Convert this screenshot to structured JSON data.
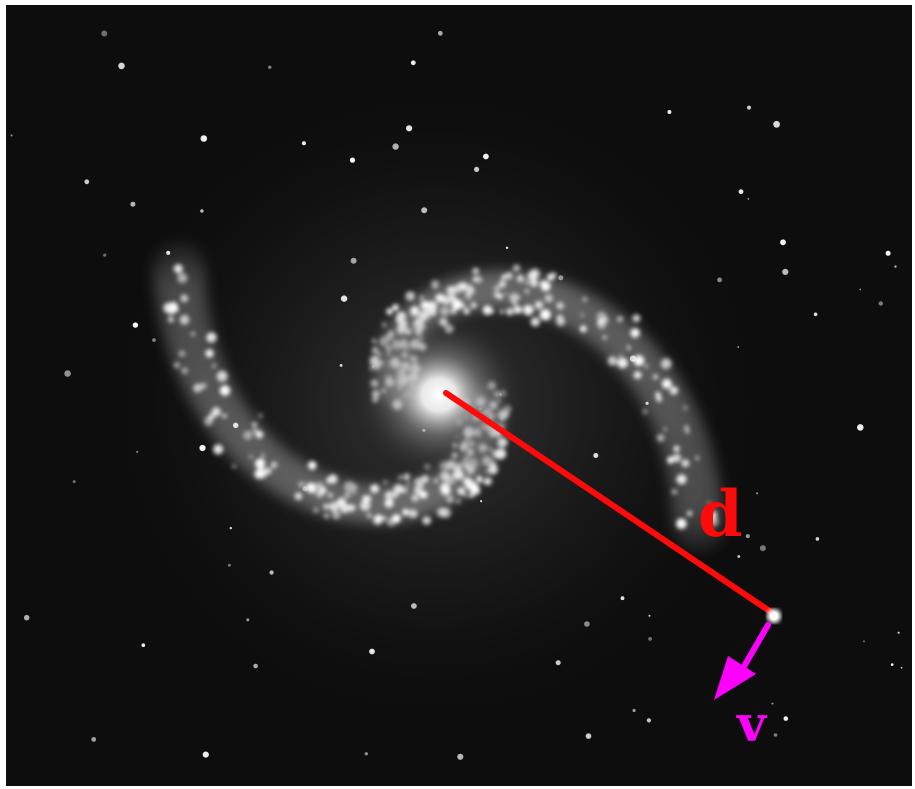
{
  "figure": {
    "distance_label": "d",
    "velocity_label": "v"
  },
  "colors": {
    "background": "#0d0d0d",
    "distance_line": "#ff0a0a",
    "velocity_arrow": "#ff00ff",
    "star_glow": "#ffffff"
  },
  "icons": {
    "galaxy": "spiral-galaxy-photo",
    "star": "bright-star-dot",
    "arrow": "velocity-arrow-icon"
  }
}
